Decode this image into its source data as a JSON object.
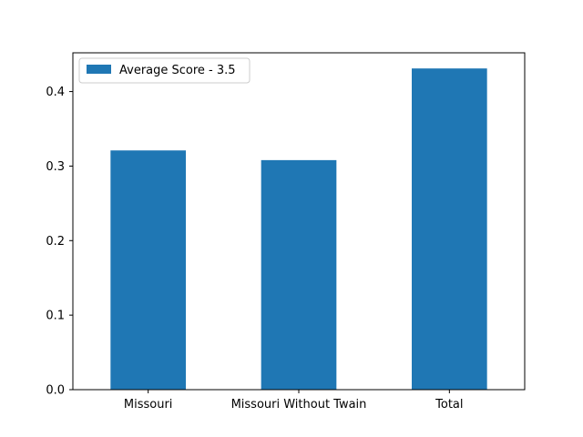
{
  "chart_data": {
    "type": "bar",
    "categories": [
      "Missouri",
      "Missouri Without Twain",
      "Total"
    ],
    "series": [
      {
        "name": "Average Score - 3.5",
        "values": [
          0.321,
          0.308,
          0.431
        ],
        "color": "#1f77b4"
      }
    ],
    "yticks": [
      "0.0",
      "0.1",
      "0.2",
      "0.3",
      "0.4"
    ],
    "ytick_values": [
      0,
      0.1,
      0.2,
      0.3,
      0.4
    ],
    "ylim": [
      0,
      0.452
    ],
    "legend_position": "top-left",
    "grid": false
  }
}
